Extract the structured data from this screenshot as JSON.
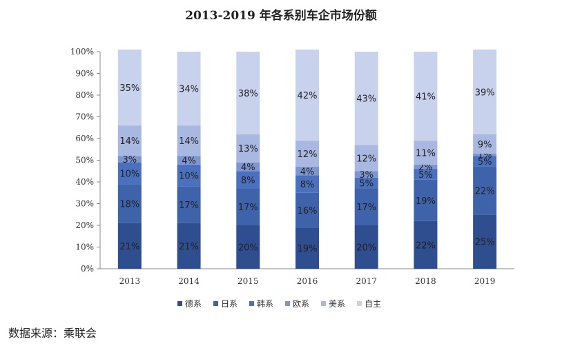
{
  "chart_data": {
    "type": "bar",
    "stacked": true,
    "title": "2013-2019 年各系别车企市场份额",
    "categories": [
      "2013",
      "2014",
      "2015",
      "2016",
      "2017",
      "2018",
      "2019"
    ],
    "yticks": [
      "0%",
      "10%",
      "20%",
      "30%",
      "40%",
      "50%",
      "60%",
      "70%",
      "80%",
      "90%",
      "100%"
    ],
    "ylim": [
      0,
      100
    ],
    "legend_position": "bottom",
    "series": [
      {
        "name": "德系",
        "color": "#2f4e8f",
        "values": [
          21,
          21,
          20,
          19,
          20,
          22,
          25
        ]
      },
      {
        "name": "日系",
        "color": "#3e63ab",
        "values": [
          18,
          17,
          17,
          16,
          17,
          19,
          22
        ]
      },
      {
        "name": "韩系",
        "color": "#4b70bd",
        "values": [
          10,
          10,
          8,
          8,
          5,
          5,
          5
        ]
      },
      {
        "name": "欧系",
        "color": "#7e95cf",
        "values": [
          3,
          4,
          4,
          4,
          3,
          2,
          1
        ]
      },
      {
        "name": "美系",
        "color": "#a9b8e0",
        "values": [
          14,
          14,
          13,
          12,
          12,
          11,
          9
        ]
      },
      {
        "name": "自主",
        "color": "#c9d2ec",
        "values": [
          35,
          34,
          38,
          42,
          43,
          41,
          39
        ]
      }
    ]
  },
  "footer": {
    "source": "数据来源：乘联会"
  }
}
